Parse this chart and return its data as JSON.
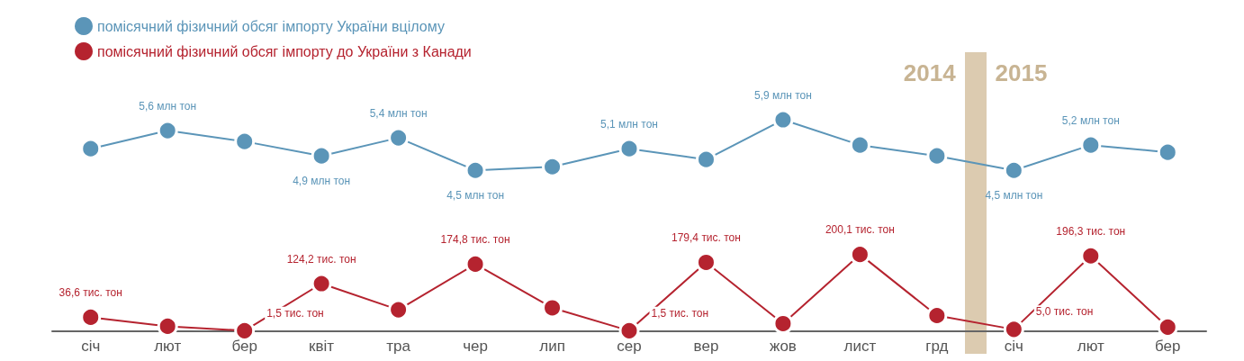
{
  "chart_data": [
    {
      "type": "line",
      "categories": [
        "січ",
        "лют",
        "бер",
        "квіт",
        "тра",
        "чер",
        "лип",
        "сер",
        "вер",
        "жов",
        "лист",
        "грд",
        "січ",
        "лют",
        "бер"
      ],
      "tick_labels": false,
      "series": [
        {
          "name": "помісячний фізичний обсяг імпорту України вцілому",
          "color": "#5b95b8",
          "values": [
            5.1,
            5.6,
            5.3,
            4.9,
            5.4,
            4.5,
            4.6,
            5.1,
            4.8,
            5.9,
            5.2,
            4.9,
            4.5,
            5.2,
            5.0
          ],
          "value_labels": [
            null,
            "5,6 млн тон",
            null,
            "4,9 млн тон",
            "5,4 млн тон",
            "4,5 млн тон",
            null,
            "5,1 млн тон",
            null,
            "5,9 млн тон",
            null,
            null,
            "4,5 млн тон",
            "5,2 млн тон",
            null
          ]
        }
      ],
      "annotations": [
        "2014",
        "2015"
      ],
      "marker": "circle",
      "legend": "top left"
    },
    {
      "type": "line",
      "categories": [
        "січ",
        "лют",
        "бер",
        "квіт",
        "тра",
        "чер",
        "лип",
        "сер",
        "вер",
        "жов",
        "лист",
        "грд",
        "січ",
        "лют",
        "бер"
      ],
      "tick_labels": "x",
      "series": [
        {
          "name": "помісячний фізичний обсяг імпорту до України з Канади",
          "color": "#b5232f",
          "values": [
            36.6,
            13,
            1.5,
            124.2,
            56,
            174.8,
            61,
            1.5,
            179.4,
            20,
            200.1,
            41,
            5.0,
            196.3,
            11
          ],
          "value_labels": [
            "36,6 тис. тон",
            null,
            "1,5 тис. тон",
            "124,2 тис. тон",
            null,
            "174,8 тис. тон",
            null,
            "1,5 тис. тон",
            "179,4 тис. тон",
            null,
            "200,1 тис. тон",
            null,
            "5,0 тис. тон",
            "196,3 тис. тон",
            null
          ]
        }
      ],
      "marker": "circle",
      "legend": "top left"
    }
  ]
}
